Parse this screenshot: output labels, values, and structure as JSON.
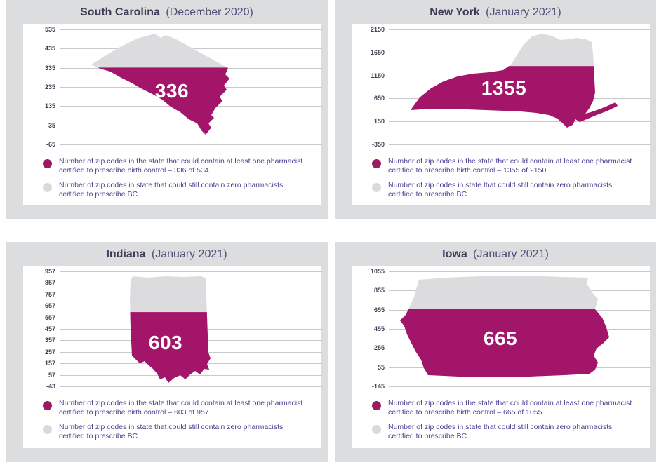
{
  "colors": {
    "filled_fill": "#a31569",
    "empty_fill": "#dcdcde",
    "panel_background": "#dcdddf",
    "legend_text": "#4a4191",
    "title_text": "#3f3b56"
  },
  "panels": [
    {
      "id": "south-carolina",
      "title_state": "South Carolina",
      "title_date": "(December 2020)",
      "value_label": "336",
      "value": 336,
      "total": 534,
      "axis_max": 535,
      "axis_min": -65,
      "ticks": [
        "535",
        "435",
        "335",
        "235",
        "135",
        "35",
        "-65"
      ],
      "legend": [
        {
          "text": "Number of zip codes in the state that could contain at least one pharmacist certified to prescribe birth control – 336 of 534"
        },
        {
          "text": "Number of zip codes in state that could still contain zero pharmacists certified to prescribe BC"
        }
      ]
    },
    {
      "id": "new-york",
      "title_state": "New York",
      "title_date": "(January 2021)",
      "value_label": "1355",
      "value": 1355,
      "total": 2150,
      "axis_max": 2150,
      "axis_min": -350,
      "ticks": [
        "2150",
        "1650",
        "1150",
        "650",
        "150",
        "-350"
      ],
      "legend": [
        {
          "text": "Number of zip codes in the state that could contain at least one pharmacist certified to prescribe birth control – 1355 of 2150"
        },
        {
          "text": "Number of zip codes in state that could still contain zero pharmacists certified to prescribe BC"
        }
      ]
    },
    {
      "id": "indiana",
      "title_state": "Indiana",
      "title_date": "(January 2021)",
      "value_label": "603",
      "value": 603,
      "total": 957,
      "axis_max": 957,
      "axis_min": -43,
      "ticks": [
        "957",
        "857",
        "757",
        "657",
        "557",
        "457",
        "357",
        "257",
        "157",
        "57",
        "-43"
      ],
      "legend": [
        {
          "text": "Number of zip codes in the state that could contain at least one pharmacist certified to prescribe birth control – 603 of 957"
        },
        {
          "text": "Number of zip codes in state that could still contain zero pharmacists certified to prescribe BC"
        }
      ]
    },
    {
      "id": "iowa",
      "title_state": "Iowa",
      "title_date": "(January 2021)",
      "value_label": "665",
      "value": 665,
      "total": 1055,
      "axis_max": 1055,
      "axis_min": -145,
      "ticks": [
        "1055",
        "855",
        "655",
        "455",
        "255",
        "55",
        "-145"
      ],
      "legend": [
        {
          "text": "Number of zip codes in the state that could contain at least one pharmacist certified to prescribe birth control – 665 of 1055"
        },
        {
          "text": "Number of zip codes in state that could still contain zero pharmacists certified to prescribe BC"
        }
      ]
    }
  ],
  "chart_data": [
    {
      "type": "other",
      "subtype": "state-map-fill-gauge",
      "title": "South Carolina (December 2020)",
      "categories": [
        "Zip codes with at least one certified pharmacist",
        "Zip codes with zero certified pharmacists"
      ],
      "values": [
        336,
        198
      ],
      "total": 534,
      "annotation": "336",
      "yticks": [
        535,
        435,
        335,
        235,
        135,
        35,
        -65
      ],
      "ylim": [
        -65,
        535
      ],
      "grid": true,
      "legend_position": "bottom"
    },
    {
      "type": "other",
      "subtype": "state-map-fill-gauge",
      "title": "New York (January 2021)",
      "categories": [
        "Zip codes with at least one certified pharmacist",
        "Zip codes with zero certified pharmacists"
      ],
      "values": [
        1355,
        795
      ],
      "total": 2150,
      "annotation": "1355",
      "yticks": [
        2150,
        1650,
        1150,
        650,
        150,
        -350
      ],
      "ylim": [
        -350,
        2150
      ],
      "grid": true,
      "legend_position": "bottom"
    },
    {
      "type": "other",
      "subtype": "state-map-fill-gauge",
      "title": "Indiana (January 2021)",
      "categories": [
        "Zip codes with at least one certified pharmacist",
        "Zip codes with zero certified pharmacists"
      ],
      "values": [
        603,
        354
      ],
      "total": 957,
      "annotation": "603",
      "yticks": [
        957,
        857,
        757,
        657,
        557,
        457,
        357,
        257,
        157,
        57,
        -43
      ],
      "ylim": [
        -43,
        957
      ],
      "grid": true,
      "legend_position": "bottom"
    },
    {
      "type": "other",
      "subtype": "state-map-fill-gauge",
      "title": "Iowa (January 2021)",
      "categories": [
        "Zip codes with at least one certified pharmacist",
        "Zip codes with zero certified pharmacists"
      ],
      "values": [
        665,
        390
      ],
      "total": 1055,
      "annotation": "665",
      "yticks": [
        1055,
        855,
        655,
        455,
        255,
        55,
        -145
      ],
      "ylim": [
        -145,
        1055
      ],
      "grid": true,
      "legend_position": "bottom"
    }
  ]
}
